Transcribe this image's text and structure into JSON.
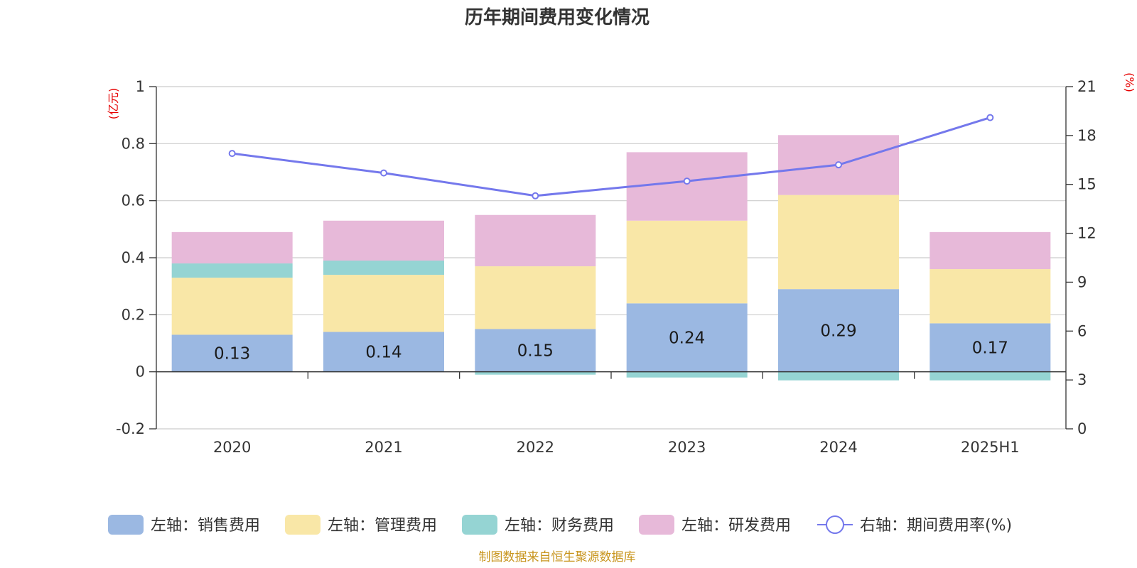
{
  "chart_data": {
    "type": "bar",
    "title": "历年期间费用变化情况",
    "categories": [
      "2020",
      "2021",
      "2022",
      "2023",
      "2024",
      "2025H1"
    ],
    "left_axis": {
      "unit": "(亿元)",
      "ylim": [
        -0.2,
        1
      ],
      "ticks": [
        "-0.2",
        "0",
        "0.2",
        "0.4",
        "0.6",
        "0.8",
        "1"
      ]
    },
    "right_axis": {
      "unit": "(%)",
      "ylim": [
        0,
        21
      ],
      "ticks": [
        "0",
        "3",
        "6",
        "9",
        "12",
        "15",
        "18",
        "21"
      ]
    },
    "series": [
      {
        "name": "左轴：销售费用",
        "color": "#9bb8e2",
        "values": [
          0.13,
          0.14,
          0.15,
          0.24,
          0.29,
          0.17
        ],
        "labels": [
          "0.13",
          "0.14",
          "0.15",
          "0.24",
          "0.29",
          "0.17"
        ]
      },
      {
        "name": "左轴：管理费用",
        "color": "#f9e7a7",
        "values": [
          0.2,
          0.2,
          0.22,
          0.29,
          0.33,
          0.19
        ]
      },
      {
        "name": "左轴：财务费用",
        "color": "#95d4d3",
        "values": [
          0.05,
          0.05,
          -0.01,
          -0.02,
          -0.03,
          -0.03
        ]
      },
      {
        "name": "左轴：研发费用",
        "color": "#e7b9d9",
        "values": [
          0.11,
          0.14,
          0.18,
          0.24,
          0.21,
          0.13
        ]
      }
    ],
    "line": {
      "name": "右轴：期间费用率(%)",
      "color": "#7478ec",
      "values": [
        16.9,
        15.7,
        14.3,
        15.2,
        16.2,
        19.1
      ]
    },
    "grid": true,
    "legend": "bottom"
  },
  "source": "制图数据来自恒生聚源数据库"
}
